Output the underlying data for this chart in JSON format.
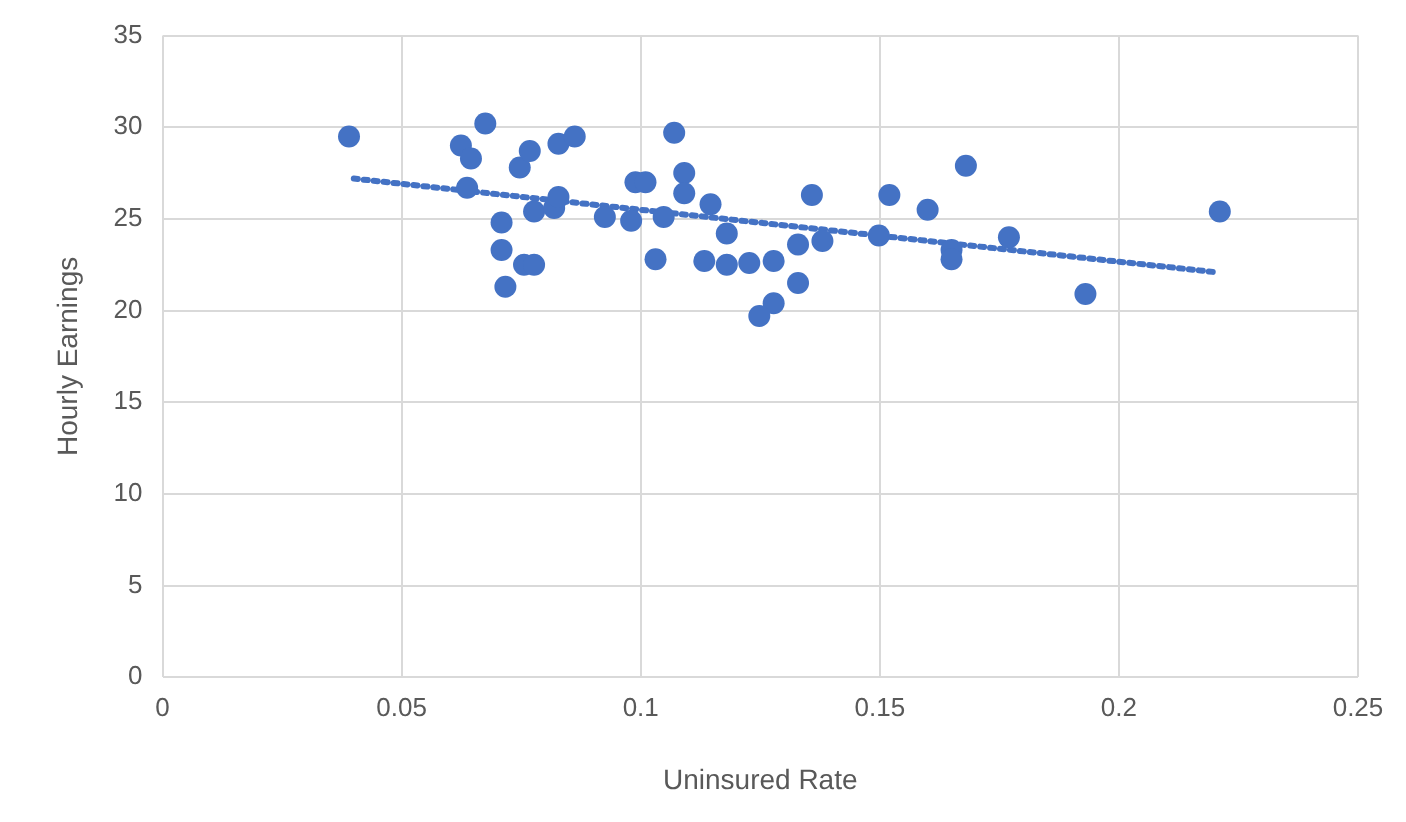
{
  "chart_data": {
    "type": "scatter",
    "xlabel": "Uninsured Rate",
    "ylabel": "Hourly Earnings",
    "xlim": [
      0,
      0.25
    ],
    "xticks": [
      0,
      0.05,
      0.1,
      0.15,
      0.2,
      0.25
    ],
    "ylim": [
      0,
      35
    ],
    "yticks": [
      0,
      5,
      10,
      15,
      20,
      25,
      30,
      35
    ],
    "grid": true,
    "legend": false,
    "marker": "circle",
    "series": [
      {
        "type": "scatter",
        "color": "#4472c4",
        "x": [
          0.039,
          0.0624,
          0.0645,
          0.0637,
          0.0675,
          0.0709,
          0.0709,
          0.0717,
          0.0747,
          0.0768,
          0.0756,
          0.0777,
          0.0777,
          0.0819,
          0.0828,
          0.0828,
          0.0862,
          0.0925,
          0.098,
          0.0989,
          0.101,
          0.1048,
          0.107,
          0.1091,
          0.1091,
          0.1031,
          0.1133,
          0.1146,
          0.118,
          0.118,
          0.1227,
          0.1278,
          0.1329,
          0.138,
          0.1329,
          0.1278,
          0.1248,
          0.1358,
          0.1498,
          0.152,
          0.16,
          0.168,
          0.165,
          0.165,
          0.177,
          0.193,
          0.2211
        ],
        "values": [
          29.5,
          29.0,
          28.3,
          26.7,
          30.2,
          24.8,
          23.3,
          21.3,
          27.8,
          28.7,
          22.5,
          22.5,
          25.4,
          25.6,
          26.2,
          29.1,
          29.5,
          25.1,
          24.9,
          27.0,
          27.0,
          25.1,
          29.7,
          27.5,
          26.4,
          22.8,
          22.7,
          25.8,
          24.2,
          22.5,
          22.6,
          22.7,
          23.6,
          23.8,
          21.5,
          20.4,
          19.7,
          26.3,
          24.1,
          26.3,
          25.5,
          27.9,
          23.3,
          22.8,
          24.0,
          20.9,
          25.4
        ]
      },
      {
        "type": "line",
        "color": "#4472c4",
        "line_style": "dotted",
        "marker": "none",
        "x": [
          0.04,
          0.22
        ],
        "values": [
          27.2,
          22.1
        ]
      }
    ]
  }
}
